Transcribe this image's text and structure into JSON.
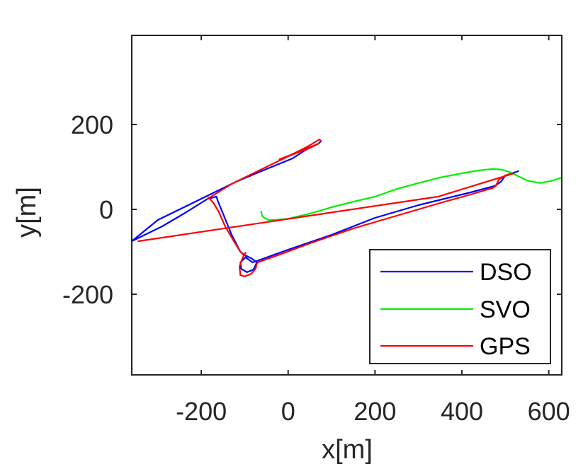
{
  "chart_data": {
    "type": "line",
    "title": "",
    "xlabel": "x[m]",
    "ylabel": "y[m]",
    "xlim": [
      -360,
      630
    ],
    "ylim": [
      -390,
      410
    ],
    "xticks": [
      -200,
      0,
      200,
      400,
      600
    ],
    "yticks": [
      -200,
      0,
      200
    ],
    "xtick_labels": [
      "-200",
      "0",
      "200",
      "400",
      "600"
    ],
    "ytick_labels": [
      "-200",
      "0",
      "200"
    ],
    "grid": false,
    "legend_position": "bottom-right",
    "series": [
      {
        "name": "DSO",
        "color": "#0000ff",
        "x": [
          75,
          70,
          40,
          10,
          -50,
          -120,
          -180,
          -240,
          -300,
          -360,
          -330,
          -290,
          -240,
          -185,
          -165,
          -162,
          -150,
          -130,
          -110,
          -100,
          -85,
          -72,
          -80,
          -95,
          -108,
          -110,
          -98,
          -82,
          -62,
          0,
          100,
          200,
          250,
          300,
          360,
          420,
          475,
          490,
          500,
          530
        ],
        "y": [
          160,
          155,
          140,
          120,
          95,
          65,
          35,
          5,
          -25,
          -75,
          -60,
          -40,
          -10,
          25,
          30,
          20,
          -10,
          -60,
          -100,
          -108,
          -115,
          -125,
          -142,
          -148,
          -140,
          -125,
          -113,
          -125,
          -118,
          -95,
          -60,
          -20,
          -5,
          10,
          25,
          40,
          55,
          65,
          80,
          90
        ]
      },
      {
        "name": "SVO",
        "color": "#00ee00",
        "x": [
          -62,
          -60,
          -55,
          -45,
          -30,
          -20,
          -10,
          0,
          50,
          100,
          150,
          200,
          250,
          300,
          350,
          400,
          440,
          470,
          490,
          510,
          530,
          550,
          580,
          610,
          630
        ],
        "y": [
          -5,
          -15,
          -20,
          -25,
          -25,
          -24,
          -23,
          -22,
          -10,
          5,
          18,
          30,
          48,
          62,
          75,
          85,
          92,
          95,
          94,
          88,
          78,
          68,
          62,
          68,
          75
        ]
      },
      {
        "name": "GPS",
        "color": "#ff0000",
        "x": [
          75,
          72,
          45,
          0,
          -20,
          10,
          40,
          70,
          50,
          0,
          -60,
          -130,
          -185,
          -183,
          -172,
          -160,
          -145,
          -125,
          -110,
          -102,
          -98,
          -105,
          -112,
          -110,
          -100,
          -85,
          -75,
          -72,
          -70,
          -10,
          50,
          150,
          250,
          350,
          420,
          470,
          478,
          485,
          500,
          520,
          345,
          -345
        ],
        "y": [
          162,
          165,
          148,
          125,
          118,
          130,
          142,
          155,
          145,
          125,
          95,
          60,
          25,
          28,
          15,
          -5,
          -40,
          -75,
          -100,
          -108,
          -102,
          -115,
          -135,
          -155,
          -158,
          -152,
          -140,
          -128,
          -125,
          -103,
          -80,
          -45,
          -15,
          15,
          35,
          50,
          55,
          70,
          80,
          85,
          30,
          -75
        ]
      }
    ]
  }
}
